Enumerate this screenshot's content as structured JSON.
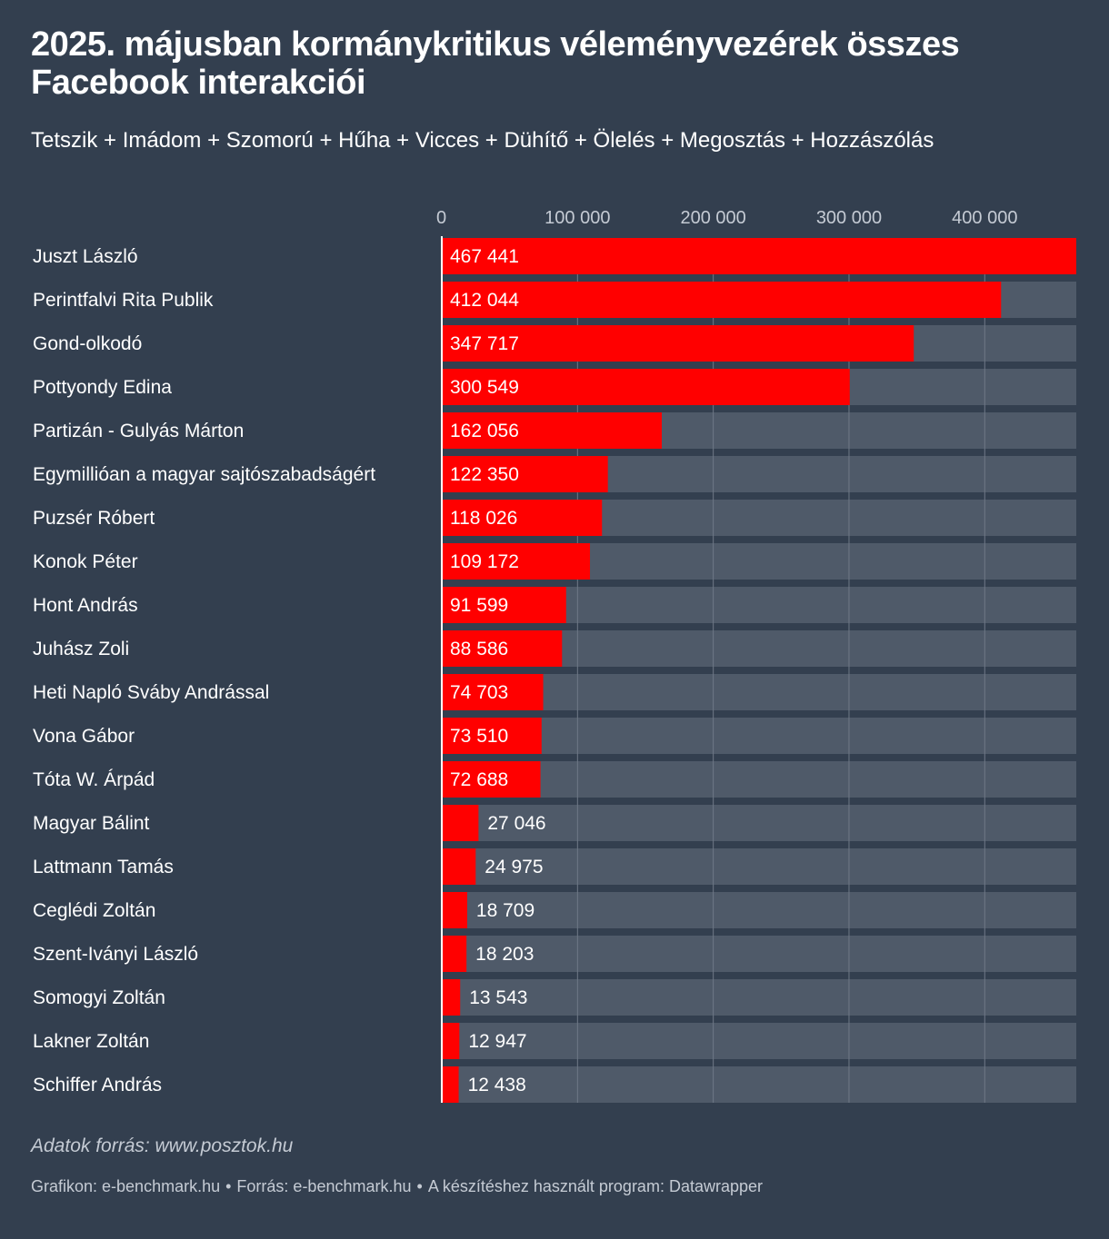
{
  "header": {
    "title": "2025. májusban kormánykritikus véleményvezérek összes Facebook interakciói",
    "subtitle": "Tetszik + Imádom + Szomorú + Hűha + Vicces + Dühítő + Ölelés + Megosztás + Hozzászólás"
  },
  "colors": {
    "background": "#333f4f",
    "bar": "#ff0000",
    "track": "#4f5a69",
    "text": "#ffffff",
    "muted": "#c5cbd4"
  },
  "chart_data": {
    "type": "bar",
    "orientation": "horizontal",
    "title": "2025. májusban kormánykritikus véleményvezérek összes Facebook interakciói",
    "xlim": [
      0,
      467441
    ],
    "ticks": [
      0,
      100000,
      200000,
      300000,
      400000
    ],
    "tick_labels": [
      "0",
      "100 000",
      "200 000",
      "300 000",
      "400 000"
    ],
    "grid": true,
    "categories": [
      "Juszt László",
      "Perintfalvi Rita Publik",
      "Gond-olkodó",
      "Pottyondy Edina",
      "Partizán - Gulyás Márton",
      "Egymillióan a magyar sajtószabadságért",
      "Puzsér Róbert",
      "Konok Péter",
      "Hont András",
      "Juhász Zoli",
      "Heti Napló Sváby Andrással",
      "Vona Gábor",
      "Tóta W. Árpád",
      "Magyar Bálint",
      "Lattmann Tamás",
      "Ceglédi Zoltán",
      "Szent-Iványi László",
      "Somogyi Zoltán",
      "Lakner Zoltán",
      "Schiffer András"
    ],
    "values": [
      467441,
      412044,
      347717,
      300549,
      162056,
      122350,
      118026,
      109172,
      91599,
      88586,
      74703,
      73510,
      72688,
      27046,
      24975,
      18709,
      18203,
      13543,
      12947,
      12438
    ],
    "value_labels": [
      "467 441",
      "412 044",
      "347 717",
      "300 549",
      "162 056",
      "122 350",
      "118 026",
      "109 172",
      "91 599",
      "88 586",
      "74 703",
      "73 510",
      "72 688",
      "27 046",
      "24 975",
      "18 709",
      "18 203",
      "13 543",
      "12 947",
      "12 438"
    ]
  },
  "notes": {
    "source_note": "Adatok forrás: www.posztok.hu"
  },
  "footer": {
    "graphic": "Grafikon: e-benchmark.hu",
    "source": "Forrás: e-benchmark.hu",
    "program": "A készítéshez használt program: Datawrapper",
    "separator": "•"
  }
}
